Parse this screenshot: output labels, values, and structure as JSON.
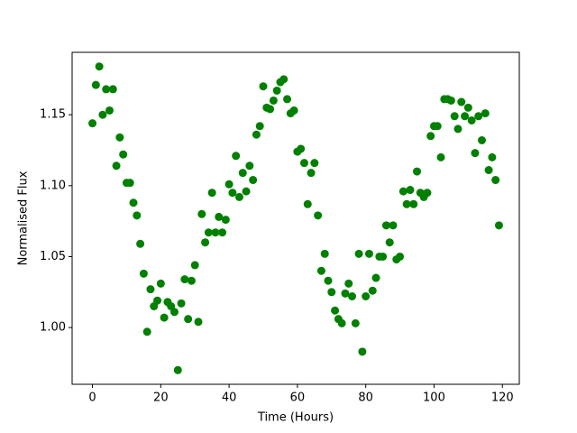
{
  "chart_data": {
    "type": "scatter",
    "x_label": "Time (Hours)",
    "y_label": "Normalised Flux",
    "color": "#008000",
    "x": [
      0,
      1,
      2,
      3,
      4,
      5,
      6,
      7,
      8,
      9,
      10,
      11,
      12,
      13,
      14,
      15,
      16,
      17,
      18,
      19,
      20,
      21,
      22,
      23,
      24,
      25,
      26,
      27,
      28,
      29,
      30,
      31,
      32,
      33,
      34,
      35,
      36,
      37,
      38,
      39,
      40,
      41,
      42,
      43,
      44,
      45,
      46,
      47,
      48,
      49,
      50,
      51,
      52,
      53,
      54,
      55,
      56,
      57,
      58,
      59,
      60,
      61,
      62,
      63,
      64,
      65,
      66,
      67,
      68,
      69,
      70,
      71,
      72,
      73,
      74,
      75,
      76,
      77,
      78,
      79,
      80,
      81,
      82,
      83,
      84,
      85,
      86,
      87,
      88,
      89,
      90,
      91,
      92,
      93,
      94,
      95,
      96,
      97,
      98,
      99,
      100,
      101,
      102,
      103,
      104,
      105,
      106,
      107,
      108,
      109,
      110,
      111,
      112,
      113,
      114,
      115,
      116,
      117,
      118,
      119
    ],
    "values": [
      1.144,
      1.171,
      1.184,
      1.15,
      1.168,
      1.153,
      1.168,
      1.114,
      1.134,
      1.122,
      1.102,
      1.102,
      1.088,
      1.079,
      1.059,
      1.038,
      0.997,
      1.027,
      1.015,
      1.019,
      1.031,
      1.007,
      1.018,
      1.015,
      1.011,
      0.97,
      1.017,
      1.034,
      1.006,
      1.033,
      1.044,
      1.004,
      1.08,
      1.06,
      1.067,
      1.095,
      1.067,
      1.078,
      1.067,
      1.076,
      1.101,
      1.095,
      1.121,
      1.092,
      1.109,
      1.096,
      1.114,
      1.104,
      1.136,
      1.142,
      1.17,
      1.155,
      1.154,
      1.16,
      1.167,
      1.173,
      1.175,
      1.161,
      1.151,
      1.153,
      1.124,
      1.126,
      1.116,
      1.087,
      1.109,
      1.116,
      1.079,
      1.04,
      1.052,
      1.033,
      1.025,
      1.012,
      1.006,
      1.003,
      1.024,
      1.031,
      1.022,
      1.003,
      1.052,
      0.983,
      1.022,
      1.052,
      1.026,
      1.035,
      1.05,
      1.05,
      1.072,
      1.06,
      1.072,
      1.048,
      1.05,
      1.096,
      1.087,
      1.097,
      1.087,
      1.11,
      1.095,
      1.092,
      1.095,
      1.135,
      1.142,
      1.142,
      1.12,
      1.161,
      1.161,
      1.16,
      1.149,
      1.14,
      1.159,
      1.149,
      1.155,
      1.146,
      1.123,
      1.149,
      1.132,
      1.151,
      1.111,
      1.12,
      1.104,
      1.072
    ],
    "xlim": [
      -5.95,
      124.95
    ],
    "ylim": [
      0.96,
      1.194
    ],
    "xticks": [
      0,
      20,
      40,
      60,
      80,
      100,
      120
    ],
    "yticks": [
      {
        "value": 1,
        "label": "1.00"
      },
      {
        "value": 1.05,
        "label": "1.05"
      },
      {
        "value": 1.1,
        "label": "1.10"
      },
      {
        "value": 1.15,
        "label": "1.15"
      }
    ]
  }
}
